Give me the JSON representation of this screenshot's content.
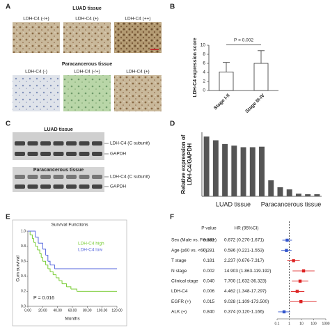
{
  "panel_labels": [
    "A",
    "B",
    "C",
    "D",
    "E",
    "F"
  ],
  "histology": {
    "luad_title": "LUAD tissue",
    "luad_labels": [
      "LDH-C4 (-/+)",
      "LDH-C4 (+)",
      "LDH-C4 (++)"
    ],
    "para_title": "Paracancerous tissue",
    "para_labels": [
      "LDH-C4 (-)",
      "LDH-C4 (-/+)",
      "LDH-C4 (+)"
    ]
  },
  "blot": {
    "luad_title": "LUAD tissue",
    "para_title": "Paracancerous tissue",
    "band_labels": [
      "LDH-C4 (C subunit)",
      "GAPDH",
      "LDH-C4 (C subunit)",
      "GAPDH"
    ]
  },
  "chart_data": [
    {
      "type": "bar",
      "ylabel": "LDH-C4 expression score",
      "categories": [
        "Stage I-II",
        "Stage III-IV"
      ],
      "values": [
        4.1,
        6.0
      ],
      "errors": [
        2.1,
        2.8
      ],
      "color": "#ffffff",
      "ylim": [
        0,
        10
      ],
      "yticks": [
        0,
        2,
        4,
        6,
        8,
        10
      ],
      "annotation": "P = 0.002"
    },
    {
      "type": "bar",
      "ylabel": [
        "Relative expression of",
        "LDH-C4/GAPDH"
      ],
      "values": [
        1.12,
        1.05,
        0.98,
        0.95,
        0.92,
        0.92,
        0.93,
        0.3,
        0.17,
        0.13,
        0.05,
        0.04,
        0.04
      ],
      "color": "#555555",
      "ylim": [
        0,
        1.2
      ],
      "group_labels": [
        "LUAD tissue",
        "Paracancerous tissue"
      ]
    },
    {
      "type": "step",
      "title": "Survival Functions",
      "xlabel": "Months",
      "ylabel": "Cum survival",
      "series": [
        {
          "name": "LDH-C4 high",
          "color": "#77cc33",
          "x": [
            0,
            3,
            6,
            8,
            10,
            13,
            16,
            18,
            20,
            24,
            27,
            30,
            34,
            38,
            42,
            46,
            52,
            58,
            66,
            120
          ],
          "values": [
            1,
            0.95,
            0.9,
            0.85,
            0.8,
            0.75,
            0.7,
            0.65,
            0.6,
            0.55,
            0.5,
            0.46,
            0.42,
            0.38,
            0.34,
            0.3,
            0.26,
            0.23,
            0.2,
            0.2
          ]
        },
        {
          "name": "LDH-C4 low",
          "color": "#5566dd",
          "x": [
            0,
            10,
            14,
            20,
            24,
            27,
            30,
            36,
            120
          ],
          "values": [
            1,
            0.92,
            0.84,
            0.76,
            0.68,
            0.6,
            0.55,
            0.5,
            0.5
          ]
        }
      ],
      "xlim": [
        0,
        120
      ],
      "xticks": [
        {
          "value": 0,
          "label": "0.00"
        },
        {
          "value": 20,
          "label": "20.00"
        },
        {
          "value": 40,
          "label": "40.00"
        },
        {
          "value": 60,
          "label": "60.00"
        },
        {
          "value": 80,
          "label": "80.00"
        },
        {
          "value": 100,
          "label": "100.00"
        },
        {
          "value": 120,
          "label": "120.00"
        }
      ],
      "ylim": [
        0,
        1
      ],
      "yticks": [
        {
          "value": 0,
          "label": "0.0"
        },
        {
          "value": 0.2,
          "label": "0.2"
        },
        {
          "value": 0.4,
          "label": "0.4"
        },
        {
          "value": 0.6,
          "label": "0.6"
        },
        {
          "value": 0.8,
          "label": "0.8"
        },
        {
          "value": 1,
          "label": "1.0"
        }
      ],
      "annotation": "P = 0.016"
    },
    {
      "type": "forest",
      "columns": [
        "P value",
        "HR (95%CI)"
      ],
      "categories": [
        "Sex (Male vs. Female)",
        "Age (≥60 vs. <60)",
        "T stage",
        "N stage",
        "Clinical stage",
        "LDH-C4",
        "EGFR (+)",
        "ALK (+)"
      ],
      "p_values": [
        0.391,
        0.281,
        0.181,
        0.002,
        {
          "value": 0.04,
          "label": "0.040"
        },
        0.006,
        0.015,
        {
          "value": 0.84,
          "label": "0.840"
        }
      ],
      "values": [
        0.672,
        0.586,
        2.237,
        14.903,
        7.7,
        4.462,
        9.028,
        0.374
      ],
      "lower": [
        0.27,
        0.221,
        0.676,
        1.863,
        1.632,
        1.348,
        1.109,
        0.12
      ],
      "upper": [
        1.671,
        1.553,
        7.317,
        119.192,
        36.323,
        17.297,
        173.5,
        1.166
      ],
      "value_labels": [
        "0.672 (0.270-1.671)",
        "0.586 (0.221-1.553)",
        "2.237 (0.676-7.317)",
        "14.903 (1.863-119.192)",
        "7.700 (1.632-36.323)",
        "4.462 (1.348-17.297)",
        "9.028 (1.109-173.500)",
        "0.374 (0.120-1.166)"
      ],
      "colors": [
        "#3355cc",
        "#3355cc",
        "#dd2222",
        "#dd2222",
        "#dd2222",
        "#dd2222",
        "#dd2222",
        "#3355cc"
      ],
      "xscale": "log",
      "xlim": [
        0.1,
        1000
      ],
      "xticks": [
        0.1,
        1,
        10,
        100,
        1000
      ],
      "reference": 1
    }
  ]
}
